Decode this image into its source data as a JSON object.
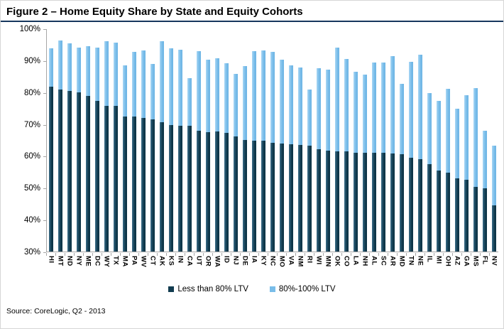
{
  "figure": {
    "title": "Figure 2 – Home Equity Share by State and Equity Cohorts",
    "source_note": "Source: CoreLogic, Q2 - 2013"
  },
  "legend": [
    {
      "label": "Less than 80% LTV",
      "color": "#123c50"
    },
    {
      "label": "80%-100% LTV",
      "color": "#79bde9"
    }
  ],
  "colors": {
    "dark_series": "#123c50",
    "light_series": "#79bde9",
    "axis": "#a6a6a6",
    "title_rule": "#17375e"
  },
  "chart_data": {
    "type": "bar",
    "stacked": true,
    "title": "Figure 2 – Home Equity Share by State and Equity Cohorts",
    "xlabel": "",
    "ylabel": "",
    "ylim": [
      30,
      100
    ],
    "yticks": [
      "100%",
      "90%",
      "80%",
      "70%",
      "60%",
      "50%",
      "40%",
      "30%"
    ],
    "grid": false,
    "legend_position": "bottom",
    "categories": [
      "HI",
      "MT",
      "ND",
      "NY",
      "ME",
      "DC",
      "WY",
      "TX",
      "MA",
      "PA",
      "WV",
      "CT",
      "AK",
      "KS",
      "IN",
      "CA",
      "UT",
      "OR",
      "WA",
      "ID",
      "NJ",
      "DE",
      "IA",
      "KY",
      "NC",
      "MO",
      "VA",
      "NM",
      "RI",
      "WI",
      "MN",
      "OK",
      "CO",
      "LA",
      "NH",
      "AL",
      "SC",
      "AR",
      "MD",
      "TN",
      "NE",
      "IL",
      "MI",
      "OH",
      "AZ",
      "GA",
      "MS",
      "FL",
      "NV"
    ],
    "series": [
      {
        "name": "Less than 80% LTV",
        "color": "#123c50",
        "values": [
          81.8,
          81.0,
          80.6,
          80.0,
          79.0,
          77.5,
          75.9,
          75.9,
          72.5,
          72.4,
          72.0,
          71.5,
          70.6,
          69.8,
          69.5,
          69.5,
          68.0,
          67.5,
          67.7,
          67.4,
          66.2,
          65.2,
          64.8,
          64.8,
          64.2,
          64.0,
          63.8,
          63.5,
          63.4,
          62.2,
          61.8,
          61.5,
          61.6,
          61.1,
          61.0,
          61.0,
          61.0,
          60.9,
          60.6,
          59.6,
          59.0,
          57.4,
          55.6,
          54.9,
          53.1,
          52.7,
          50.4,
          49.9,
          44.6
        ]
      },
      {
        "name": "80%-100% LTV",
        "color": "#79bde9",
        "values": [
          12.2,
          15.4,
          15.0,
          14.2,
          15.6,
          16.6,
          20.2,
          19.9,
          16.0,
          20.5,
          21.3,
          17.5,
          25.5,
          24.1,
          24.1,
          15.1,
          25.0,
          22.9,
          23.1,
          21.9,
          19.7,
          23.1,
          28.3,
          28.6,
          28.6,
          26.4,
          24.7,
          24.5,
          17.5,
          25.6,
          25.5,
          32.8,
          29.0,
          25.4,
          24.8,
          28.5,
          28.5,
          30.7,
          22.2,
          30.1,
          32.9,
          22.5,
          21.8,
          26.3,
          21.8,
          26.6,
          31.0,
          18.2,
          18.7
        ]
      }
    ],
    "stack_totals": [
      94.0,
      96.4,
      95.6,
      94.2,
      94.6,
      94.1,
      96.1,
      95.8,
      88.5,
      92.9,
      93.3,
      89.0,
      96.1,
      93.9,
      93.6,
      84.6,
      93.0,
      90.4,
      90.8,
      89.3,
      85.9,
      88.3,
      93.1,
      93.4,
      92.8,
      90.4,
      88.5,
      88.0,
      80.9,
      87.8,
      87.3,
      94.3,
      90.6,
      86.5,
      85.8,
      89.5,
      89.5,
      91.6,
      82.8,
      89.7,
      91.9,
      79.9,
      77.4,
      81.2,
      74.9,
      79.3,
      81.4,
      68.1,
      63.3
    ]
  }
}
